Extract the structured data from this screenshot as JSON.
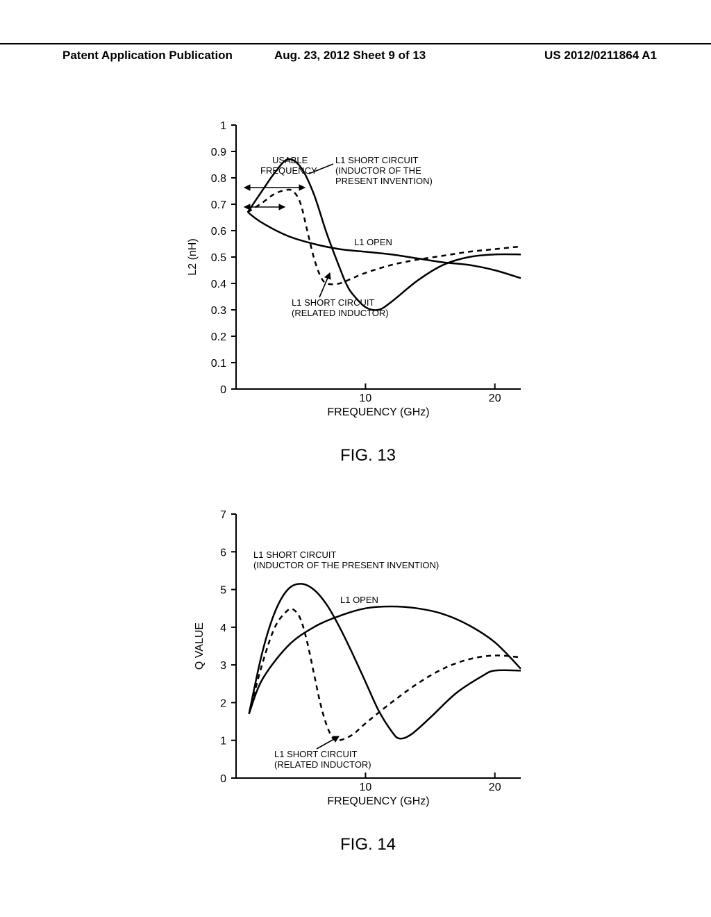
{
  "header": {
    "left": "Patent Application Publication",
    "mid": "Aug. 23, 2012  Sheet 9 of 13",
    "right": "US 2012/0211864 A1"
  },
  "fig13": {
    "caption": "FIG. 13",
    "type": "line",
    "ylabel": "L2 (nH)",
    "xlabel": "FREQUENCY (GHz)",
    "xlim": [
      0,
      22
    ],
    "ylim": [
      0,
      1
    ],
    "ytick_step": 0.1,
    "xtick_vals": [
      10,
      20
    ],
    "colors": {
      "line": "#000000",
      "bg": "#ffffff"
    },
    "yticks": [
      "0",
      "0.1",
      "0.2",
      "0.3",
      "0.4",
      "0.5",
      "0.6",
      "0.7",
      "0.8",
      "0.9",
      "1"
    ],
    "annotations": {
      "usable1": "USABLE",
      "usable2": "FREQUENCY",
      "l1sc1": "L1 SHORT CIRCUIT",
      "l1sc2": "(INDUCTOR OF THE",
      "l1sc3": "PRESENT INVENTION)",
      "l1open": "L1 OPEN",
      "l1rel1": "L1 SHORT CIRCUIT",
      "l1rel2": "(RELATED INDUCTOR)"
    },
    "series": {
      "l1_open": {
        "style": "solid",
        "points_xy": [
          [
            0.9,
            0.67
          ],
          [
            2,
            0.63
          ],
          [
            4,
            0.58
          ],
          [
            6,
            0.55
          ],
          [
            8,
            0.53
          ],
          [
            10,
            0.52
          ],
          [
            12,
            0.51
          ],
          [
            14,
            0.495
          ],
          [
            16,
            0.48
          ],
          [
            18,
            0.47
          ],
          [
            20,
            0.45
          ],
          [
            22,
            0.42
          ]
        ]
      },
      "l1_short_present": {
        "style": "solid",
        "points_xy": [
          [
            0.9,
            0.67
          ],
          [
            2,
            0.75
          ],
          [
            3,
            0.82
          ],
          [
            4,
            0.87
          ],
          [
            5,
            0.84
          ],
          [
            6,
            0.74
          ],
          [
            7,
            0.59
          ],
          [
            8,
            0.46
          ],
          [
            8.5,
            0.4
          ],
          [
            9,
            0.36
          ],
          [
            10,
            0.31
          ],
          [
            11,
            0.3
          ],
          [
            12,
            0.33
          ],
          [
            14,
            0.41
          ],
          [
            16,
            0.47
          ],
          [
            18,
            0.5
          ],
          [
            20,
            0.51
          ],
          [
            22,
            0.51
          ]
        ]
      },
      "l1_short_related": {
        "style": "dash",
        "points_xy": [
          [
            0.9,
            0.67
          ],
          [
            2,
            0.705
          ],
          [
            3,
            0.74
          ],
          [
            4,
            0.755
          ],
          [
            4.5,
            0.745
          ],
          [
            5,
            0.7
          ],
          [
            5.5,
            0.6
          ],
          [
            6,
            0.5
          ],
          [
            6.5,
            0.43
          ],
          [
            7,
            0.4
          ],
          [
            8,
            0.4
          ],
          [
            9,
            0.42
          ],
          [
            10,
            0.44
          ],
          [
            12,
            0.47
          ],
          [
            14,
            0.49
          ],
          [
            16,
            0.505
          ],
          [
            18,
            0.52
          ],
          [
            20,
            0.53
          ],
          [
            22,
            0.54
          ]
        ]
      }
    }
  },
  "fig14": {
    "caption": "FIG. 14",
    "type": "line",
    "ylabel": "Q VALUE",
    "xlabel": "FREQUENCY (GHz)",
    "xlim": [
      0,
      22
    ],
    "ylim": [
      0,
      7
    ],
    "ytick_step": 1,
    "xtick_vals": [
      10,
      20
    ],
    "colors": {
      "line": "#000000",
      "bg": "#ffffff"
    },
    "yticks": [
      "0",
      "1",
      "2",
      "3",
      "4",
      "5",
      "6",
      "7"
    ],
    "annotations": {
      "l1sc1": "L1 SHORT CIRCUIT",
      "l1sc2": "(INDUCTOR OF THE PRESENT INVENTION)",
      "l1open": "L1 OPEN",
      "l1rel1": "L1 SHORT CIRCUIT",
      "l1rel2": "(RELATED INDUCTOR)"
    },
    "series": {
      "l1_open": {
        "style": "solid",
        "points_xy": [
          [
            1,
            1.7
          ],
          [
            2,
            2.6
          ],
          [
            4,
            3.5
          ],
          [
            6,
            4.0
          ],
          [
            8,
            4.3
          ],
          [
            10,
            4.5
          ],
          [
            12,
            4.55
          ],
          [
            14,
            4.5
          ],
          [
            16,
            4.35
          ],
          [
            18,
            4.05
          ],
          [
            20,
            3.6
          ],
          [
            22,
            2.9
          ]
        ]
      },
      "l1_short_present": {
        "style": "solid",
        "points_xy": [
          [
            1,
            1.7
          ],
          [
            2,
            3.3
          ],
          [
            3,
            4.4
          ],
          [
            4,
            5.0
          ],
          [
            5,
            5.15
          ],
          [
            6,
            5.0
          ],
          [
            7,
            4.6
          ],
          [
            8,
            4.0
          ],
          [
            9,
            3.3
          ],
          [
            10,
            2.55
          ],
          [
            11,
            1.8
          ],
          [
            12,
            1.25
          ],
          [
            12.6,
            1.05
          ],
          [
            13.5,
            1.15
          ],
          [
            15,
            1.6
          ],
          [
            17,
            2.25
          ],
          [
            19,
            2.7
          ],
          [
            20,
            2.85
          ],
          [
            22,
            2.85
          ]
        ]
      },
      "l1_short_related": {
        "style": "dash",
        "points_xy": [
          [
            1,
            1.7
          ],
          [
            2,
            3.0
          ],
          [
            3,
            4.0
          ],
          [
            4,
            4.45
          ],
          [
            4.5,
            4.45
          ],
          [
            5,
            4.2
          ],
          [
            5.5,
            3.6
          ],
          [
            6,
            2.8
          ],
          [
            6.5,
            2.0
          ],
          [
            7,
            1.4
          ],
          [
            7.5,
            1.05
          ],
          [
            8,
            1.0
          ],
          [
            9,
            1.15
          ],
          [
            10,
            1.45
          ],
          [
            12,
            2.0
          ],
          [
            14,
            2.5
          ],
          [
            16,
            2.9
          ],
          [
            18,
            3.15
          ],
          [
            20,
            3.25
          ],
          [
            22,
            3.2
          ]
        ]
      }
    }
  }
}
